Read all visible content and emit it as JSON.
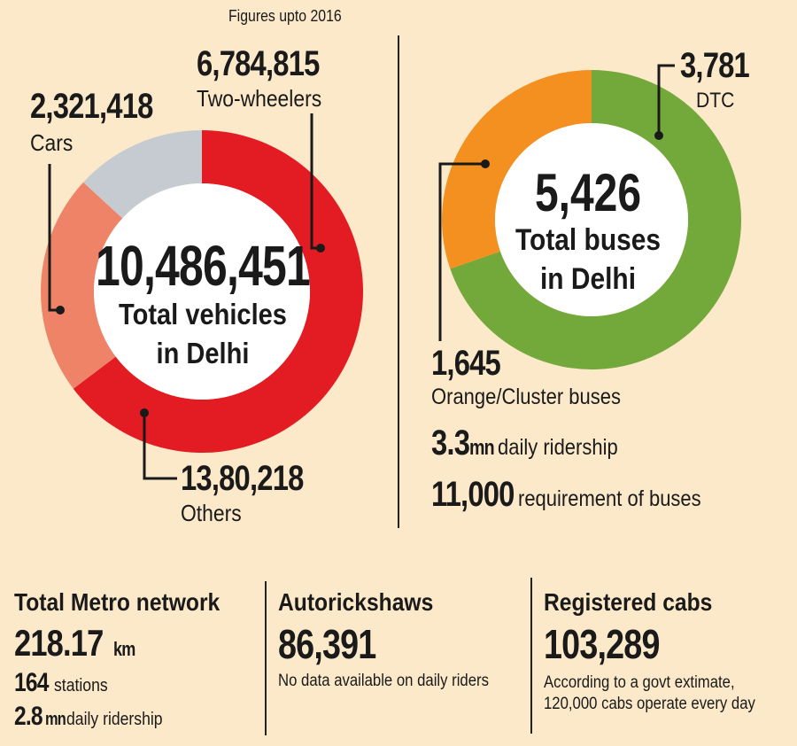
{
  "note": "Figures upto 2016",
  "vehicles": {
    "total_value": "10,486,451",
    "total_label_1": "Total vehicles",
    "total_label_2": "in Delhi",
    "two_wheelers_value": "6,784,815",
    "two_wheelers_label": "Two-wheelers",
    "cars_value": "2,321,418",
    "cars_label": "Cars",
    "others_value": "13,80,218",
    "others_label": "Others"
  },
  "buses": {
    "total_value": "5,426",
    "total_label_1": "Total buses",
    "total_label_2": "in Delhi",
    "dtc_value": "3,781",
    "dtc_label": "DTC",
    "cluster_value": "1,645",
    "cluster_label": "Orange/Cluster buses",
    "ridership_value": "3.3",
    "ridership_unit": "mn",
    "ridership_label": "daily ridership",
    "requirement_value": "11,000",
    "requirement_label": "requirement of buses"
  },
  "metro": {
    "title": "Total Metro network",
    "length_value": "218.17",
    "length_unit": "km",
    "stations_value": "164",
    "stations_label": "stations",
    "ridership_value": "2.8",
    "ridership_unit": "mn",
    "ridership_label": "daily ridership"
  },
  "autos": {
    "title": "Autorickshaws",
    "value": "86,391",
    "note": "No data available on daily riders"
  },
  "cabs": {
    "title": "Registered cabs",
    "value": "103,289",
    "note_1": "According to a govt extimate,",
    "note_2": "120,000 cabs operate every day"
  },
  "chart_data": [
    {
      "type": "pie",
      "categories": [
        "Two-wheelers",
        "Cars",
        "Others"
      ],
      "values": [
        6784815,
        2321418,
        1380218
      ],
      "colors": [
        "#e31b23",
        "#ee8368",
        "#c5cbd0"
      ]
    },
    {
      "type": "pie",
      "categories": [
        "DTC",
        "Orange/Cluster buses"
      ],
      "values": [
        3781,
        1645
      ],
      "colors": [
        "#73a83a",
        "#f3901f"
      ]
    }
  ]
}
